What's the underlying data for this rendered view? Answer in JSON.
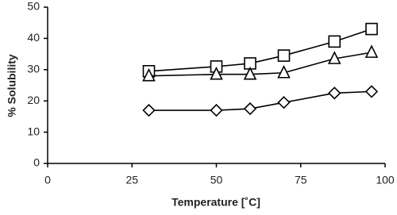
{
  "chart_data": {
    "type": "line",
    "x_label": "Temperature [˚C]",
    "y_label": "% Solubility",
    "x": [
      30,
      50,
      60,
      70,
      85,
      96
    ],
    "series": [
      {
        "marker": "square",
        "color": "#000000",
        "values": [
          29.5,
          31,
          32,
          34.5,
          39,
          43
        ]
      },
      {
        "marker": "triangle",
        "color": "#000000",
        "values": [
          28,
          28.5,
          28.5,
          29,
          33.5,
          35.5
        ]
      },
      {
        "marker": "diamond",
        "color": "#000000",
        "values": [
          17,
          17,
          17.5,
          19.5,
          22.5,
          23
        ]
      }
    ],
    "xlim": [
      0,
      100
    ],
    "xticks": [
      0,
      25,
      50,
      75,
      100
    ],
    "ylim": [
      0,
      50
    ],
    "yticks": [
      0,
      10,
      20,
      30,
      40,
      50
    ]
  }
}
